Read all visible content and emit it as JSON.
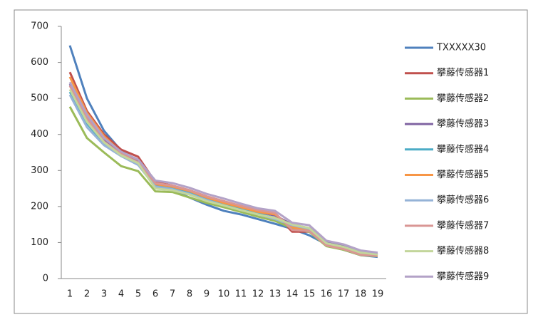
{
  "chart_data": {
    "type": "line",
    "categories": [
      "1",
      "2",
      "3",
      "4",
      "5",
      "6",
      "7",
      "8",
      "9",
      "10",
      "11",
      "12",
      "13",
      "14",
      "15",
      "16",
      "17",
      "18",
      "19"
    ],
    "ylim": [
      0,
      700
    ],
    "yticks": [
      0,
      100,
      200,
      300,
      400,
      500,
      600,
      700
    ],
    "grid": false,
    "legend": "right",
    "series": [
      {
        "name": "TXXXXX30",
        "color": "#4f81bd",
        "values": [
          647,
          500,
          410,
          355,
          325,
          255,
          245,
          225,
          205,
          188,
          178,
          165,
          152,
          138,
          120,
          95,
          80,
          65,
          60
        ]
      },
      {
        "name": "攀藤传感器1",
        "color": "#c0504d",
        "values": [
          573,
          465,
          400,
          358,
          338,
          268,
          258,
          245,
          228,
          215,
          200,
          188,
          180,
          130,
          130,
          95,
          85,
          68,
          65
        ]
      },
      {
        "name": "攀藤传感器2",
        "color": "#9bbb59",
        "values": [
          477,
          390,
          350,
          312,
          298,
          242,
          240,
          225,
          210,
          198,
          185,
          172,
          160,
          140,
          130,
          90,
          80,
          65,
          62
        ]
      },
      {
        "name": "攀藤传感器3",
        "color": "#8064a2",
        "values": [
          540,
          450,
          385,
          345,
          325,
          265,
          255,
          240,
          222,
          210,
          198,
          185,
          175,
          150,
          140,
          100,
          90,
          72,
          68
        ]
      },
      {
        "name": "攀藤传感器4",
        "color": "#4bacc6",
        "values": [
          518,
          430,
          375,
          340,
          318,
          258,
          250,
          238,
          220,
          205,
          192,
          180,
          168,
          145,
          135,
          95,
          85,
          70,
          65
        ]
      },
      {
        "name": "攀藤传感器5",
        "color": "#f79646",
        "values": [
          560,
          460,
          395,
          350,
          330,
          262,
          255,
          243,
          225,
          210,
          198,
          185,
          178,
          142,
          135,
          95,
          85,
          68,
          64
        ]
      },
      {
        "name": "攀藤传感器6",
        "color": "#95b3d7",
        "values": [
          510,
          420,
          370,
          340,
          315,
          255,
          248,
          235,
          218,
          203,
          190,
          178,
          165,
          148,
          138,
          98,
          88,
          72,
          67
        ]
      },
      {
        "name": "攀藤传感器7",
        "color": "#d99694",
        "values": [
          535,
          445,
          380,
          345,
          322,
          265,
          258,
          245,
          228,
          215,
          202,
          190,
          182,
          135,
          132,
          92,
          82,
          66,
          63
        ]
      },
      {
        "name": "攀藤传感器8",
        "color": "#c3d69b",
        "values": [
          525,
          435,
          378,
          342,
          320,
          250,
          245,
          233,
          215,
          203,
          190,
          178,
          168,
          150,
          140,
          98,
          88,
          72,
          67
        ]
      },
      {
        "name": "攀藤传感器9",
        "color": "#b3a2c7",
        "values": [
          545,
          455,
          390,
          352,
          330,
          272,
          265,
          252,
          235,
          222,
          208,
          195,
          188,
          155,
          148,
          105,
          95,
          78,
          72
        ]
      }
    ]
  }
}
